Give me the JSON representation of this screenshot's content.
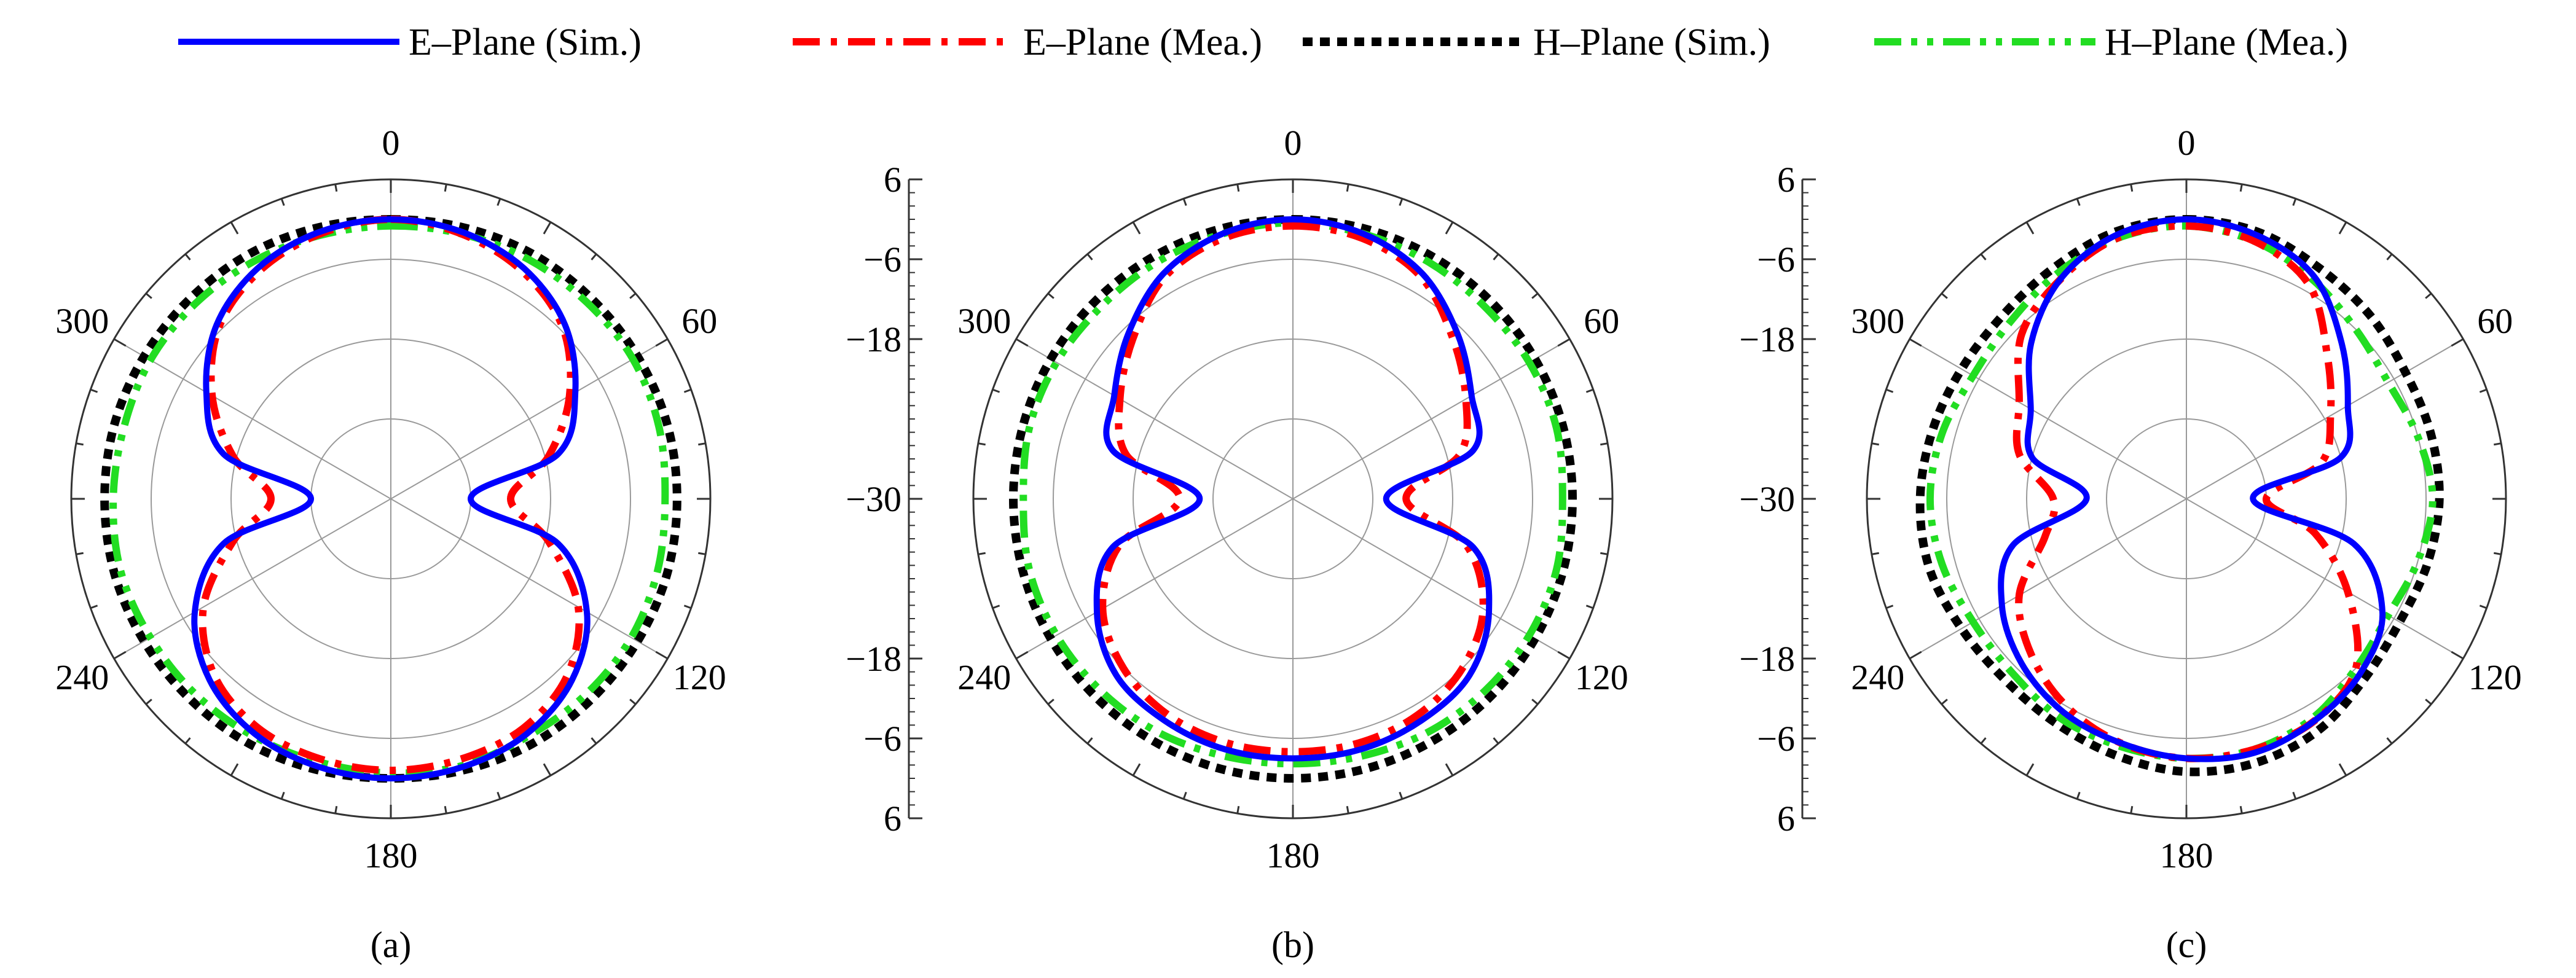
{
  "colors": {
    "e_sim": "#0000ff",
    "e_mea": "#ff0000",
    "h_sim": "#000000",
    "h_mea": "#22dd22",
    "grid": "#999999",
    "frame": "#333333"
  },
  "legend": [
    {
      "label": "E–Plane (Sim.)",
      "style": "solid",
      "color": "#0000ff"
    },
    {
      "label": "E–Plane (Mea.)",
      "style": "dash-dot",
      "color": "#ff0000"
    },
    {
      "label": "H–Plane (Sim.)",
      "style": "dotted",
      "color": "#000000"
    },
    {
      "label": "H–Plane (Mea.)",
      "style": "dash-dot-dot",
      "color": "#22dd22"
    }
  ],
  "chart_data": [
    {
      "type": "polar-line",
      "panel_label": "(a)",
      "angle_ticks": [
        "0",
        "60",
        "120",
        "180",
        "240",
        "300"
      ],
      "radial_ticks": [],
      "rlim": [
        -42,
        6
      ],
      "units": "dB",
      "grid": true,
      "series": [
        {
          "name": "E–Plane (Sim.)",
          "angles_deg": [
            0,
            15,
            30,
            45,
            60,
            75,
            90,
            105,
            120,
            135,
            150,
            165,
            180,
            195,
            210,
            225,
            240,
            255,
            270,
            285,
            300,
            315,
            330,
            345
          ],
          "values_db": [
            0,
            -0.5,
            -2,
            -5,
            -10,
            -16,
            -30,
            -16,
            -8,
            -3.5,
            -1.2,
            -0.3,
            0,
            -0.3,
            -1.2,
            -3.5,
            -8,
            -16,
            -30,
            -16,
            -10,
            -5,
            -2,
            -0.5
          ]
        },
        {
          "name": "E–Plane (Mea.)",
          "angles_deg": [
            0,
            15,
            30,
            45,
            60,
            75,
            90,
            105,
            120,
            135,
            150,
            165,
            180,
            195,
            210,
            225,
            240,
            255,
            270,
            285,
            300,
            315,
            330,
            345
          ],
          "values_db": [
            0,
            -0.8,
            -2.5,
            -5.5,
            -11,
            -17.5,
            -24,
            -17.5,
            -9.5,
            -4.5,
            -2.2,
            -1.5,
            -1.2,
            -1.5,
            -2.2,
            -4.5,
            -9.5,
            -17.5,
            -24,
            -17.5,
            -11,
            -5.5,
            -2.5,
            -0.8
          ]
        },
        {
          "name": "H–Plane (Sim.)",
          "angles_deg": [
            0,
            15,
            30,
            45,
            60,
            75,
            90,
            105,
            120,
            135,
            150,
            165,
            180,
            195,
            210,
            225,
            240,
            255,
            270,
            285,
            300,
            315,
            330,
            345
          ],
          "values_db": [
            0,
            0.2,
            0.5,
            0.6,
            0.8,
            1,
            1,
            1,
            0.8,
            0.6,
            0.5,
            0.2,
            0,
            0.2,
            0.5,
            0.6,
            0.8,
            1,
            1,
            1,
            0.8,
            0.6,
            0.5,
            0.2
          ]
        },
        {
          "name": "H–Plane (Mea.)",
          "angles_deg": [
            0,
            15,
            30,
            45,
            60,
            75,
            90,
            105,
            120,
            135,
            150,
            165,
            180,
            195,
            210,
            225,
            240,
            255,
            270,
            285,
            300,
            315,
            330,
            345
          ],
          "values_db": [
            -1,
            -0.8,
            -0.5,
            -0.3,
            0,
            -0.3,
            -0.8,
            -0.5,
            -0.3,
            -0.5,
            -0.8,
            -0.5,
            -0.8,
            -1,
            -0.8,
            -0.5,
            -0.3,
            0,
            -0.3,
            -0.5,
            -0.3,
            -0.5,
            -0.8,
            -1
          ]
        }
      ]
    },
    {
      "type": "polar-line",
      "panel_label": "(b)",
      "angle_ticks": [
        "0",
        "60",
        "120",
        "180",
        "240",
        "300"
      ],
      "radial_ticks": [
        "6",
        "−6",
        "−18",
        "−30",
        "−18",
        "−6",
        "6"
      ],
      "rlim": [
        -42,
        6
      ],
      "units": "dB",
      "grid": true,
      "series": [
        {
          "name": "E–Plane (Sim.)",
          "angles_deg": [
            0,
            15,
            30,
            45,
            60,
            75,
            90,
            105,
            120,
            135,
            150,
            165,
            180,
            195,
            210,
            225,
            240,
            255,
            270,
            285,
            300,
            315,
            330,
            345
          ],
          "values_db": [
            0,
            -0.8,
            -3,
            -7,
            -11,
            -14,
            -28,
            -14,
            -8,
            -4.5,
            -3.5,
            -3,
            -3,
            -3,
            -3.5,
            -4.5,
            -8,
            -14,
            -28,
            -14,
            -11,
            -7,
            -3,
            -0.8
          ]
        },
        {
          "name": "E–Plane (Mea.)",
          "angles_deg": [
            0,
            15,
            30,
            45,
            60,
            75,
            90,
            105,
            120,
            135,
            150,
            165,
            180,
            195,
            210,
            225,
            240,
            255,
            270,
            285,
            300,
            315,
            330,
            345
          ],
          "values_db": [
            -1,
            -1.5,
            -3.5,
            -8,
            -12,
            -16,
            -25,
            -15,
            -9,
            -6,
            -4.5,
            -4,
            -4,
            -4,
            -4.5,
            -6,
            -9,
            -15,
            -25,
            -16,
            -12,
            -8,
            -3.5,
            -1.5
          ]
        },
        {
          "name": "H–Plane (Sim.)",
          "angles_deg": [
            0,
            15,
            30,
            45,
            60,
            75,
            90,
            105,
            120,
            135,
            150,
            165,
            180,
            195,
            210,
            225,
            240,
            255,
            270,
            285,
            300,
            315,
            330,
            345
          ],
          "values_db": [
            0,
            0,
            0,
            0,
            0,
            0,
            0,
            0,
            0,
            0,
            0,
            0,
            0,
            0,
            0,
            0,
            0,
            0,
            0,
            0,
            0,
            0,
            0,
            0
          ]
        },
        {
          "name": "H–Plane (Mea.)",
          "angles_deg": [
            0,
            15,
            30,
            45,
            60,
            75,
            90,
            105,
            120,
            135,
            150,
            165,
            180,
            195,
            210,
            225,
            240,
            255,
            270,
            285,
            300,
            315,
            330,
            345
          ],
          "values_db": [
            -0.5,
            -0.8,
            -1,
            -1.2,
            -1,
            -1,
            -1.5,
            -1,
            -1,
            -1.2,
            -1.5,
            -2,
            -2.2,
            -2,
            -1.5,
            -1.2,
            -1,
            -1,
            -1.5,
            -1,
            -1,
            -1.2,
            -1,
            -0.8
          ]
        }
      ]
    },
    {
      "type": "polar-line",
      "panel_label": "(c)",
      "angle_ticks": [
        "0",
        "60",
        "120",
        "180",
        "240",
        "300"
      ],
      "radial_ticks": [
        "6",
        "−6",
        "−18",
        "−30",
        "−18",
        "−6",
        "6"
      ],
      "rlim": [
        -42,
        6
      ],
      "units": "dB",
      "grid": true,
      "series": [
        {
          "name": "E–Plane (Sim.)",
          "angles_deg": [
            0,
            15,
            30,
            45,
            60,
            75,
            90,
            105,
            120,
            135,
            150,
            165,
            180,
            195,
            210,
            225,
            240,
            255,
            270,
            285,
            300,
            315,
            330,
            345
          ],
          "values_db": [
            0,
            -1,
            -3.5,
            -9,
            -14,
            -18,
            -32,
            -16,
            -8,
            -5,
            -3.5,
            -2.5,
            -3,
            -4,
            -5,
            -7,
            -10,
            -15,
            -27,
            -18,
            -15,
            -9,
            -4,
            -1
          ]
        },
        {
          "name": "E–Plane (Mea.)",
          "angles_deg": [
            0,
            15,
            30,
            45,
            60,
            75,
            90,
            105,
            120,
            135,
            150,
            165,
            180,
            195,
            210,
            225,
            240,
            255,
            270,
            285,
            300,
            315,
            330,
            345
          ],
          "values_db": [
            -1,
            -2,
            -5,
            -12,
            -17,
            -21,
            -30,
            -22,
            -14,
            -6,
            -3.5,
            -3,
            -3,
            -4,
            -6,
            -9,
            -13,
            -20,
            -22,
            -16,
            -13,
            -7,
            -4,
            -1.5
          ]
        },
        {
          "name": "H–Plane (Sim.)",
          "angles_deg": [
            0,
            15,
            30,
            45,
            60,
            75,
            90,
            105,
            120,
            135,
            150,
            165,
            180,
            195,
            210,
            225,
            240,
            255,
            270,
            285,
            300,
            315,
            330,
            345
          ],
          "values_db": [
            0,
            -0.5,
            -2,
            -3,
            -4,
            -4,
            -4,
            -4.5,
            -5,
            -4,
            -2,
            -1,
            -1,
            -2,
            -3,
            -3.5,
            -3,
            -2,
            -2,
            -2.5,
            -3,
            -3,
            -2,
            -0.5
          ]
        },
        {
          "name": "H–Plane (Mea.)",
          "angles_deg": [
            0,
            15,
            30,
            45,
            60,
            75,
            90,
            105,
            120,
            135,
            150,
            165,
            180,
            195,
            210,
            225,
            240,
            255,
            270,
            285,
            300,
            315,
            330,
            345
          ],
          "values_db": [
            -1,
            -2,
            -4,
            -6,
            -7,
            -6,
            -5,
            -6,
            -7,
            -6,
            -4,
            -3,
            -3,
            -3.5,
            -4,
            -5,
            -5,
            -4,
            -3.5,
            -4,
            -5,
            -4.5,
            -3,
            -1.5
          ]
        }
      ]
    }
  ]
}
